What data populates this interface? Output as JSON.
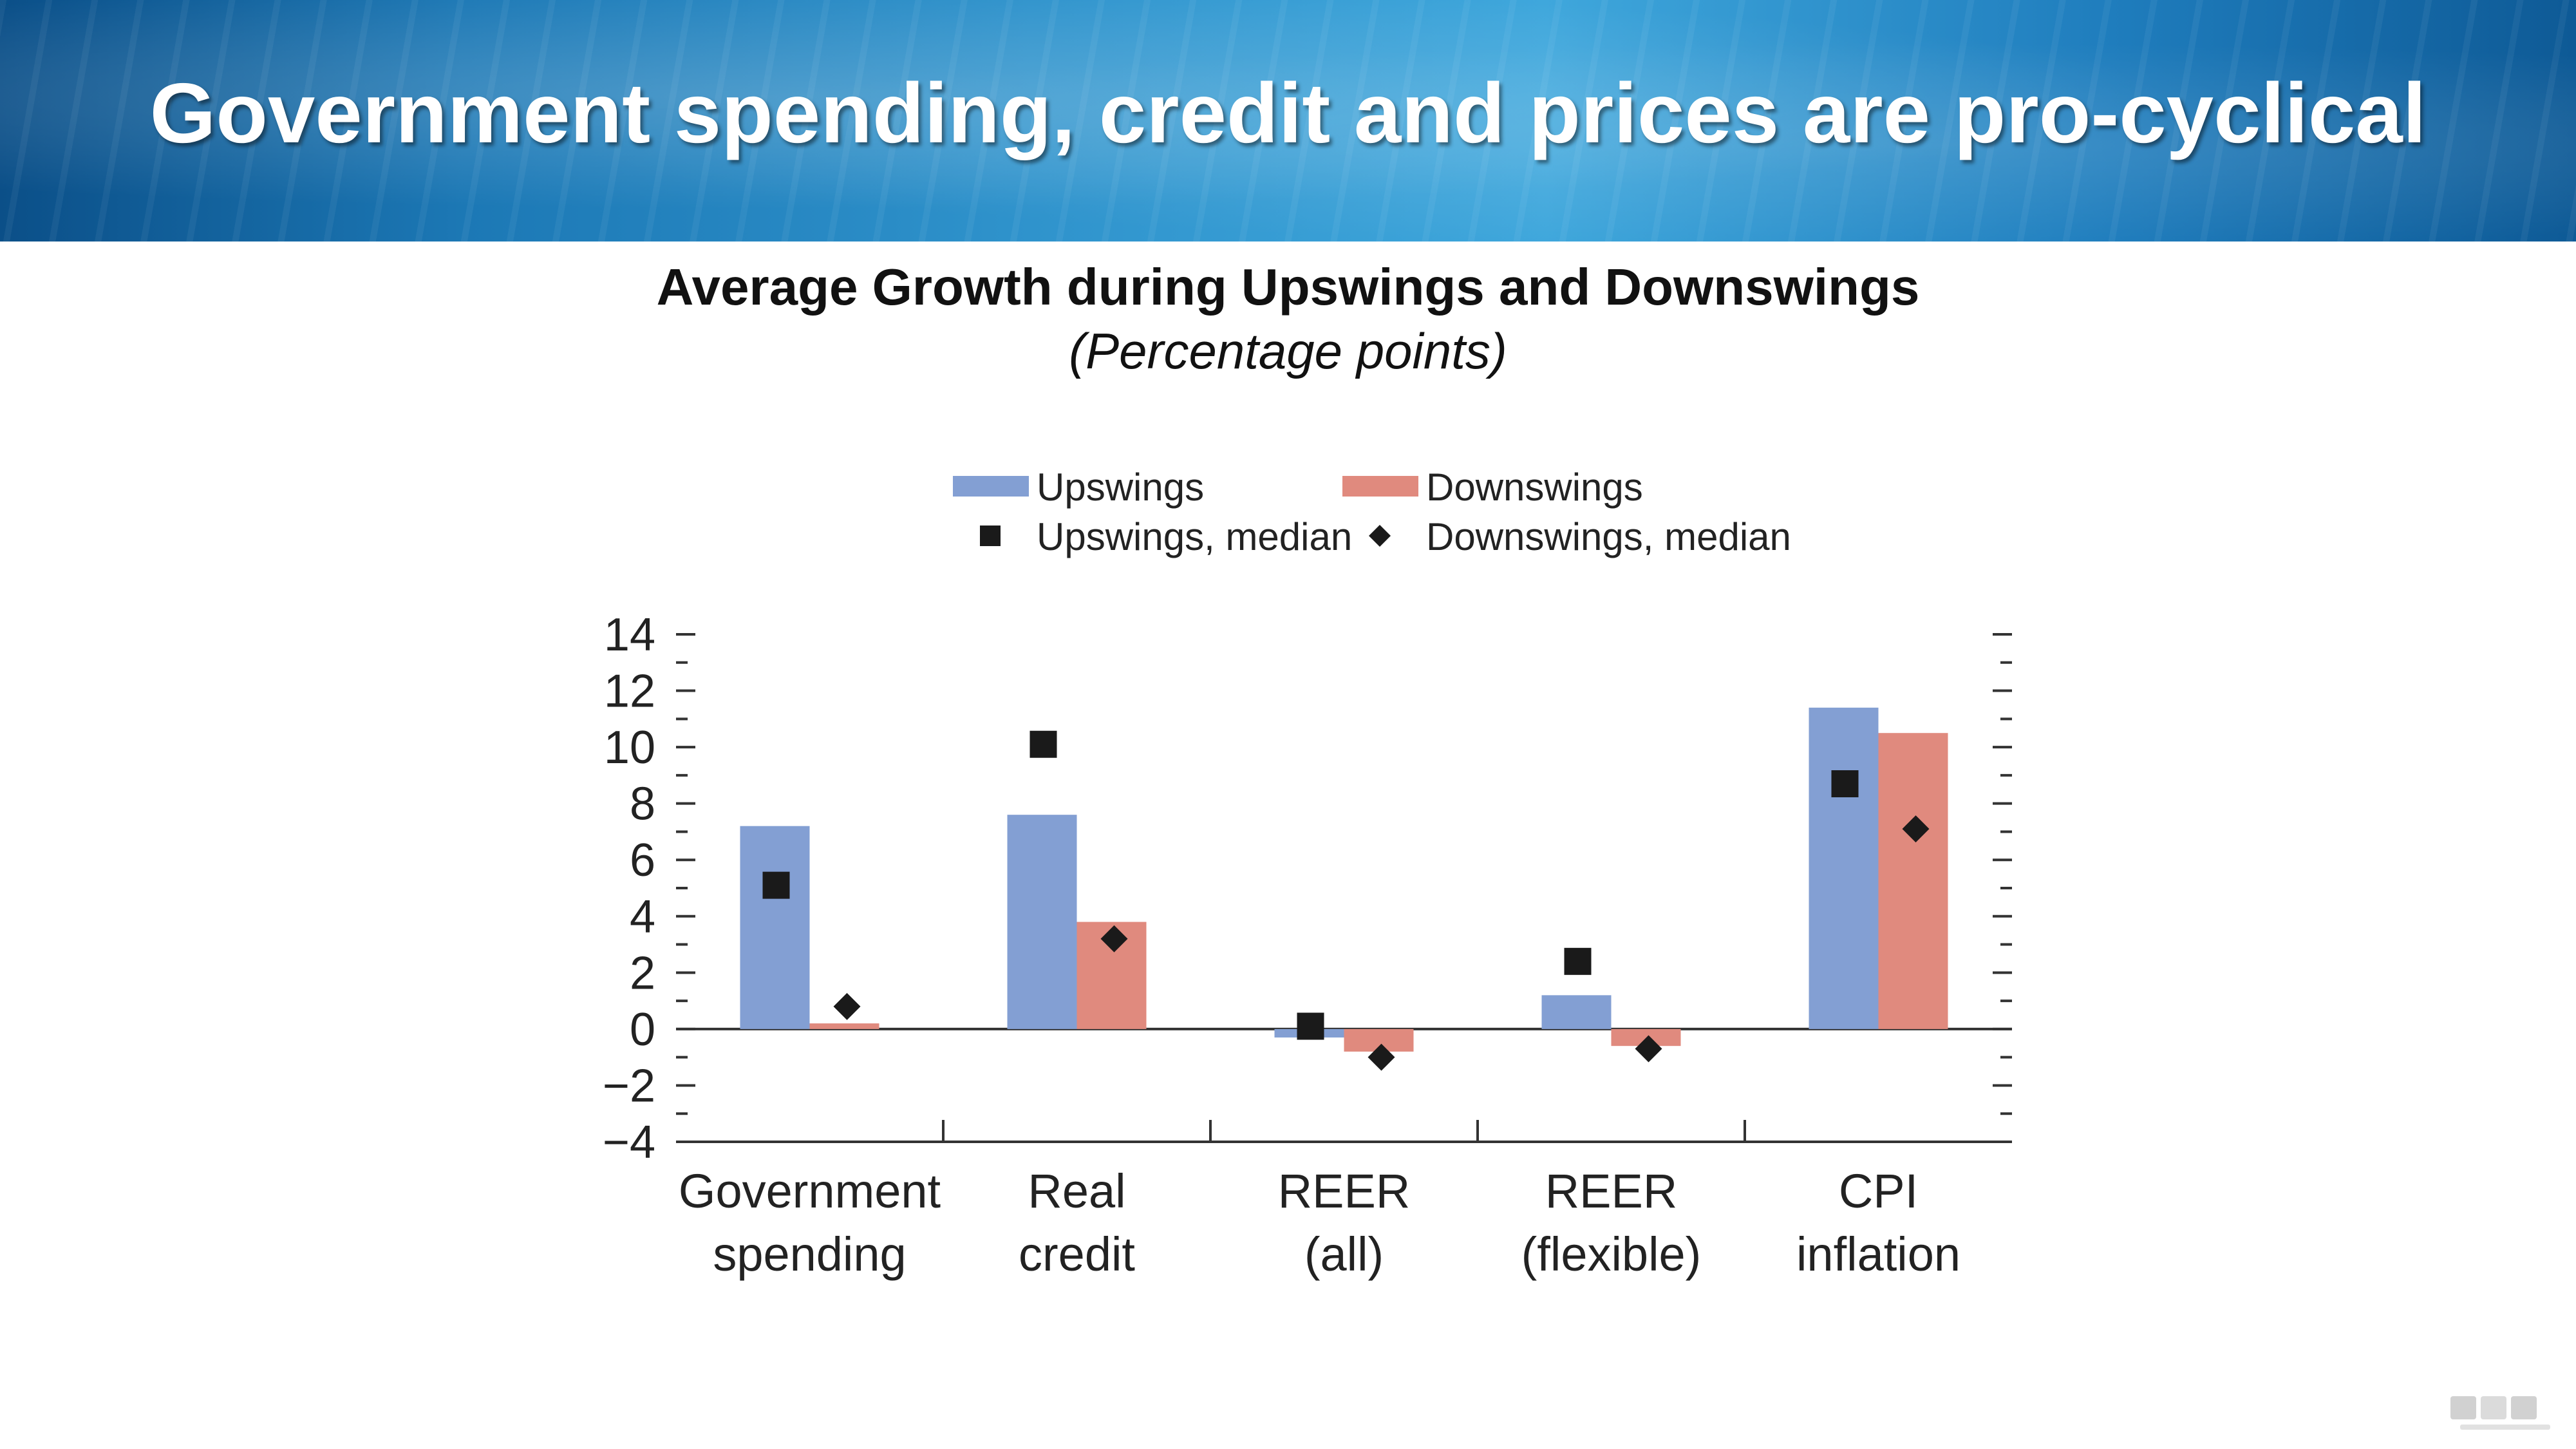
{
  "slide": {
    "title": "Government spending, credit and prices are pro-cyclical"
  },
  "chart_data": {
    "type": "bar",
    "title": "Average Growth during Upswings and Downswings",
    "subtitle": "(Percentage points)",
    "categories": [
      [
        "Government",
        "spending"
      ],
      [
        "Real",
        "credit"
      ],
      [
        "REER",
        "(all)"
      ],
      [
        "REER",
        "(flexible)"
      ],
      [
        "CPI",
        "inflation"
      ]
    ],
    "series": [
      {
        "name": "Upswings",
        "kind": "bar",
        "color": "#839fd3",
        "values": [
          7.2,
          7.6,
          -0.3,
          1.2,
          11.4
        ]
      },
      {
        "name": "Downswings",
        "kind": "bar",
        "color": "#e08a7e",
        "values": [
          0.2,
          3.8,
          -0.8,
          -0.6,
          10.5
        ]
      },
      {
        "name": "Upswings, median",
        "kind": "marker",
        "marker": "square",
        "color": "#1a1a1a",
        "values": [
          5.1,
          10.1,
          0.1,
          2.4,
          8.7
        ]
      },
      {
        "name": "Downswings, median",
        "kind": "marker",
        "marker": "diamond",
        "color": "#1a1a1a",
        "values": [
          0.8,
          3.2,
          -1.0,
          -0.7,
          7.1
        ]
      }
    ],
    "ylim": [
      -4,
      14
    ],
    "yticks": [
      14,
      12,
      10,
      8,
      6,
      4,
      2,
      0,
      -2,
      -4
    ],
    "xlabel": "",
    "ylabel": "",
    "legend_position": "top",
    "grid": false
  }
}
